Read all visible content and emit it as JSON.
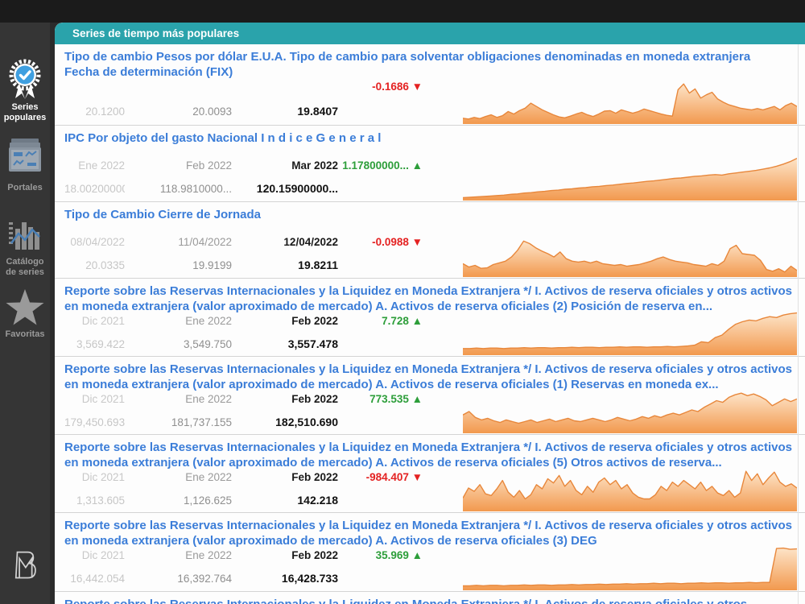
{
  "colors": {
    "accent_teal": "#2aa3ab",
    "link_blue": "#3b7dd8",
    "up_green": "#2d9e3a",
    "down_red": "#e42222",
    "spark_stroke": "#e8873b",
    "spark_fill_top": "#fde4c8",
    "spark_fill_bottom": "#f2994e",
    "sidebar_bg": "#353535",
    "topbar_bg": "#1b1b1b"
  },
  "sidebar": {
    "items": [
      {
        "label": "Series populares",
        "active": true
      },
      {
        "label": "Portales",
        "active": false
      },
      {
        "label": "Catálogo de series",
        "active": false
      },
      {
        "label": "Favoritas",
        "active": false
      }
    ]
  },
  "panel": {
    "header": "Series de tiempo más populares",
    "rows": [
      {
        "title": "Tipo de cambio Pesos por dólar E.U.A. Tipo de cambio para solventar obligaciones denominadas en moneda extranjera\nFecha de determinación (FIX)",
        "dates": null,
        "values": [
          "20.1200",
          "20.0093",
          "19.8407"
        ],
        "change": {
          "label": "-0.1686 ▼",
          "direction": "down"
        },
        "sparkline_norm": [
          10,
          8,
          12,
          9,
          14,
          18,
          12,
          16,
          26,
          20,
          28,
          34,
          46,
          38,
          30,
          24,
          18,
          13,
          11,
          15,
          20,
          24,
          18,
          14,
          20,
          27,
          28,
          22,
          30,
          26,
          22,
          26,
          32,
          28,
          24,
          20,
          17,
          15,
          78,
          92,
          70,
          80,
          58,
          66,
          72,
          56,
          48,
          42,
          38,
          34,
          32,
          30,
          33,
          30,
          34,
          38,
          30,
          40,
          46,
          38
        ]
      },
      {
        "title": "IPC Por objeto del gasto Nacional I n d i c e G e n e r a l",
        "dates": [
          "Ene 2022",
          "Feb 2022",
          "Mar 2022"
        ],
        "values": [
          "18.002000000...",
          "118.9810000...",
          "120.15900000..."
        ],
        "change": {
          "label": "1.17800000... ▲",
          "direction": "up"
        },
        "sparkline_norm": [
          3,
          4,
          5,
          6,
          7,
          8,
          9,
          11,
          12,
          14,
          15,
          17,
          18,
          20,
          21,
          23,
          24,
          26,
          27,
          29,
          30,
          32,
          33,
          35,
          37,
          38,
          40,
          42,
          43,
          45,
          47,
          49,
          50,
          52,
          54,
          55,
          57,
          58,
          57,
          60,
          62,
          64,
          66,
          68,
          71,
          74,
          78,
          83,
          89,
          97
        ]
      },
      {
        "title": "Tipo de Cambio Cierre de Jornada",
        "dates": [
          "08/04/2022",
          "11/04/2022",
          "12/04/2022"
        ],
        "values": [
          "20.0335",
          "19.9199",
          "19.8211"
        ],
        "change": {
          "label": "-0.0988 ▼",
          "direction": "down"
        },
        "sparkline_norm": [
          28,
          20,
          24,
          17,
          18,
          26,
          30,
          34,
          44,
          60,
          82,
          76,
          66,
          58,
          52,
          44,
          56,
          40,
          34,
          32,
          34,
          30,
          34,
          28,
          26,
          24,
          26,
          22,
          24,
          26,
          30,
          34,
          40,
          44,
          38,
          34,
          32,
          30,
          26,
          24,
          22,
          28,
          24,
          34,
          64,
          72,
          52,
          50,
          48,
          36,
          14,
          10,
          16,
          8,
          22,
          12
        ]
      },
      {
        "title": "Reporte sobre las Reservas Internacionales y la Liquidez en Moneda Extranjera */ I. Activos de reserva oficiales y otros activos en moneda extranjera (valor aproximado de mercado) A. Activos de reserva oficiales (2) Posición de reserva en...",
        "dates": [
          "Dic 2021",
          "Ene 2022",
          "Feb 2022"
        ],
        "values": [
          "3,569.422",
          "3,549.750",
          "3,557.478"
        ],
        "change": {
          "label": "7.728 ▲",
          "direction": "up"
        },
        "sparkline_norm": [
          12,
          12,
          13,
          12,
          13,
          13,
          12,
          13,
          13,
          14,
          13,
          14,
          14,
          13,
          14,
          14,
          15,
          14,
          15,
          15,
          14,
          15,
          15,
          16,
          15,
          16,
          16,
          15,
          16,
          16,
          17,
          16,
          17,
          18,
          20,
          28,
          26,
          38,
          44,
          58,
          70,
          76,
          80,
          78,
          84,
          88,
          86,
          92,
          95,
          97
        ]
      },
      {
        "title": "Reporte sobre las Reservas Internacionales y la Liquidez en Moneda Extranjera */ I. Activos de reserva oficiales y otros activos en moneda extranjera (valor aproximado de mercado) A. Activos de reserva oficiales (1) Reservas en moneda ex...",
        "dates": [
          "Dic 2021",
          "Ene 2022",
          "Feb 2022"
        ],
        "values": [
          "179,450.693",
          "181,737.155",
          "182,510.690"
        ],
        "change": {
          "label": "773.535 ▲",
          "direction": "up"
        },
        "sparkline_norm": [
          40,
          48,
          34,
          28,
          32,
          26,
          22,
          28,
          24,
          20,
          24,
          28,
          22,
          26,
          30,
          24,
          28,
          32,
          26,
          24,
          28,
          32,
          28,
          24,
          28,
          34,
          30,
          26,
          30,
          36,
          32,
          38,
          34,
          40,
          44,
          40,
          46,
          52,
          48,
          58,
          66,
          74,
          70,
          82,
          88,
          92,
          86,
          90,
          84,
          76,
          62,
          70,
          78,
          72,
          78
        ]
      },
      {
        "title": "Reporte sobre las Reservas Internacionales y la Liquidez en Moneda Extranjera */ I. Activos de reserva oficiales y otros activos en moneda extranjera (valor aproximado de mercado) A. Activos de reserva oficiales (5) Otros activos de reserva...",
        "dates": [
          "Dic 2021",
          "Ene 2022",
          "Feb 2022"
        ],
        "values": [
          "1,313.605",
          "1,126.625",
          "142.218"
        ],
        "change": {
          "label": "-984.407 ▼",
          "direction": "down"
        },
        "sparkline_norm": [
          28,
          52,
          44,
          60,
          38,
          34,
          50,
          70,
          42,
          30,
          46,
          26,
          36,
          60,
          50,
          74,
          64,
          82,
          56,
          70,
          46,
          36,
          56,
          42,
          66,
          76,
          60,
          70,
          50,
          60,
          40,
          30,
          26,
          26,
          36,
          56,
          46,
          66,
          56,
          70,
          60,
          50,
          66,
          46,
          56,
          40,
          34,
          46,
          30,
          40,
          92,
          70,
          86,
          60,
          76,
          90,
          66,
          56,
          62,
          52
        ]
      },
      {
        "title": "Reporte sobre las Reservas Internacionales y la Liquidez en Moneda Extranjera */ I. Activos de reserva oficiales y otros activos en moneda extranjera (valor aproximado de mercado) A. Activos de reserva oficiales (3) DEG",
        "dates": [
          "Dic 2021",
          "Ene 2022",
          "Feb 2022"
        ],
        "values": [
          "16,442.054",
          "16,392.764",
          "16,428.733"
        ],
        "change": {
          "label": "35.969 ▲",
          "direction": "up"
        },
        "sparkline_norm": [
          7,
          7,
          8,
          7,
          8,
          8,
          7,
          8,
          8,
          9,
          8,
          9,
          9,
          8,
          9,
          9,
          10,
          9,
          10,
          10,
          11,
          10,
          11,
          11,
          12,
          11,
          12,
          12,
          13,
          12,
          13,
          13,
          12,
          13,
          13,
          14,
          13,
          14,
          14,
          13,
          14,
          14,
          15,
          14,
          15,
          15,
          96,
          97,
          94,
          95
        ]
      },
      {
        "title": "Reporte sobre las Reservas Internacionales y la Liquidez en Moneda Extranjera */ I. Activos de reserva oficiales y otros",
        "dates": null,
        "values": null,
        "change": null,
        "sparkline_norm": null
      }
    ]
  }
}
